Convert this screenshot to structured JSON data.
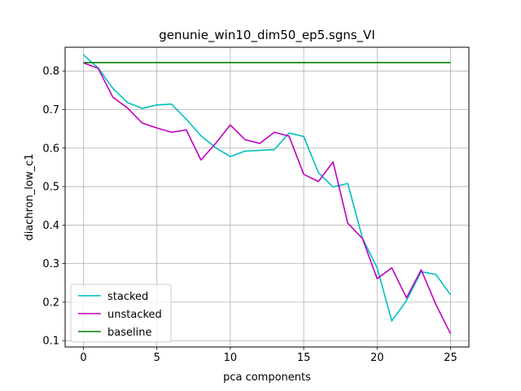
{
  "chart_data": {
    "type": "line",
    "title": "genunie_win10_dim50_ep5.sgns_VI",
    "xlabel": "pca components",
    "ylabel": "diachron_low_c1",
    "xlim": [
      -1.25,
      26.25
    ],
    "ylim": [
      0.0835,
      0.8617
    ],
    "xticks": [
      0,
      5,
      10,
      15,
      20,
      25
    ],
    "yticks": [
      0.1,
      0.2,
      0.3,
      0.4,
      0.5,
      0.6,
      0.7,
      0.8
    ],
    "ytick_labels": [
      "0.1",
      "0.2",
      "0.3",
      "0.4",
      "0.5",
      "0.6",
      "0.7",
      "0.8"
    ],
    "grid": true,
    "legend_position": "lower-left",
    "x": [
      0,
      1,
      2,
      3,
      4,
      5,
      6,
      7,
      8,
      9,
      10,
      11,
      12,
      13,
      14,
      15,
      16,
      17,
      18,
      19,
      20,
      21,
      22,
      23,
      24,
      25
    ],
    "series": [
      {
        "name": "stacked",
        "color": "#00bfbf",
        "values": [
          0.842,
          0.808,
          0.755,
          0.718,
          0.703,
          0.712,
          0.714,
          0.675,
          0.632,
          0.601,
          0.578,
          0.592,
          0.594,
          0.596,
          0.639,
          0.63,
          0.536,
          0.499,
          0.508,
          0.366,
          0.289,
          0.151,
          0.204,
          0.279,
          0.272,
          0.219
        ]
      },
      {
        "name": "unstacked",
        "color": "#bf00bf",
        "values": [
          0.821,
          0.807,
          0.732,
          0.704,
          0.665,
          0.652,
          0.641,
          0.647,
          0.569,
          0.612,
          0.66,
          0.622,
          0.612,
          0.641,
          0.631,
          0.532,
          0.513,
          0.564,
          0.405,
          0.365,
          0.261,
          0.289,
          0.211,
          0.284,
          0.194,
          0.118
        ]
      },
      {
        "name": "baseline",
        "color": "#008000",
        "values": [
          0.822,
          0.822,
          0.822,
          0.822,
          0.822,
          0.822,
          0.822,
          0.822,
          0.822,
          0.822,
          0.822,
          0.822,
          0.822,
          0.822,
          0.822,
          0.822,
          0.822,
          0.822,
          0.822,
          0.822,
          0.822,
          0.822,
          0.822,
          0.822,
          0.822,
          0.822
        ]
      }
    ]
  }
}
